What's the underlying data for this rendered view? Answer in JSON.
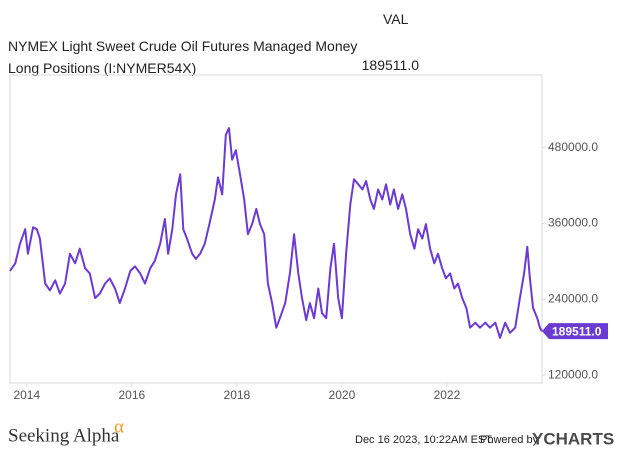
{
  "chart_data": {
    "type": "line",
    "column_header": "VAL",
    "series": [
      {
        "name": "NYMEX Light Sweet Crude Oil Futures Managed Money Long Positions (I:NYMER54X)",
        "color": "#6a3bd3",
        "x": [
          2013.68,
          2013.78,
          2013.87,
          2013.97,
          2014.02,
          2014.12,
          2014.19,
          2014.25,
          2014.35,
          2014.44,
          2014.54,
          2014.63,
          2014.73,
          2014.82,
          2014.92,
          2015.01,
          2015.11,
          2015.2,
          2015.3,
          2015.39,
          2015.49,
          2015.58,
          2015.68,
          2015.77,
          2015.87,
          2015.97,
          2016.06,
          2016.16,
          2016.25,
          2016.35,
          2016.44,
          2016.54,
          2016.63,
          2016.69,
          2016.77,
          2016.84,
          2016.92,
          2016.98,
          2017.05,
          2017.15,
          2017.22,
          2017.3,
          2017.39,
          2017.49,
          2017.58,
          2017.64,
          2017.72,
          2017.79,
          2017.85,
          2017.91,
          2017.98,
          2018.06,
          2018.14,
          2018.21,
          2018.29,
          2018.37,
          2018.44,
          2018.52,
          2018.59,
          2018.67,
          2018.75,
          2018.82,
          2018.92,
          2019.01,
          2019.09,
          2019.17,
          2019.24,
          2019.32,
          2019.39,
          2019.47,
          2019.55,
          2019.62,
          2019.7,
          2019.78,
          2019.85,
          2019.93,
          2020.0,
          2020.08,
          2020.16,
          2020.23,
          2020.31,
          2020.39,
          2020.46,
          2020.54,
          2020.61,
          2020.69,
          2020.77,
          2020.84,
          2020.92,
          2020.99,
          2021.07,
          2021.15,
          2021.22,
          2021.3,
          2021.38,
          2021.45,
          2021.53,
          2021.6,
          2021.68,
          2021.76,
          2021.83,
          2021.91,
          2021.98,
          2022.06,
          2022.14,
          2022.21,
          2022.29,
          2022.37,
          2022.44,
          2022.54,
          2022.63,
          2022.73,
          2022.82,
          2022.92,
          2023.01,
          2023.11,
          2023.2,
          2023.3,
          2023.39,
          2023.47,
          2023.53,
          2023.58,
          2023.64,
          2023.72,
          2023.77,
          2023.81
        ],
        "values": [
          285000,
          297000,
          328000,
          351000,
          312000,
          354000,
          351000,
          336000,
          265000,
          254000,
          270000,
          249000,
          265000,
          312000,
          297000,
          320000,
          289000,
          281000,
          242000,
          249000,
          265000,
          273000,
          257000,
          234000,
          257000,
          285000,
          292000,
          281000,
          265000,
          289000,
          301000,
          328000,
          367000,
          312000,
          351000,
          406000,
          438000,
          351000,
          336000,
          312000,
          304000,
          312000,
          328000,
          364000,
          398000,
          433000,
          406000,
          500000,
          511000,
          461000,
          476000,
          438000,
          398000,
          343000,
          359000,
          383000,
          359000,
          343000,
          265000,
          234000,
          195000,
          210000,
          234000,
          281000,
          343000,
          281000,
          242000,
          207000,
          234000,
          210000,
          257000,
          218000,
          210000,
          289000,
          328000,
          242000,
          210000,
          312000,
          390000,
          430000,
          422000,
          414000,
          427000,
          398000,
          383000,
          414000,
          398000,
          422000,
          390000,
          414000,
          383000,
          406000,
          383000,
          343000,
          320000,
          351000,
          336000,
          359000,
          320000,
          297000,
          312000,
          289000,
          273000,
          281000,
          257000,
          265000,
          242000,
          226000,
          195000,
          203000,
          195000,
          203000,
          195000,
          203000,
          179000,
          203000,
          187000,
          195000,
          242000,
          281000,
          323000,
          273000,
          226000,
          210000,
          195000,
          189511
        ]
      }
    ],
    "latest": {
      "value": 189511,
      "label": "189511.0"
    },
    "xlim": [
      2013.68,
      2023.81
    ],
    "xticks": [
      2014,
      2016,
      2018,
      2020,
      2022
    ],
    "ylim": [
      107500,
      595000
    ],
    "yticks": [
      {
        "value": 120000,
        "label": "120000.0"
      },
      {
        "value": 240000,
        "label": "240000.0"
      },
      {
        "value": 360000,
        "label": "360000.0"
      },
      {
        "value": 480000,
        "label": "480000.0"
      }
    ],
    "grid": false,
    "source_logo": "Seeking Alpha",
    "source_mark": "α",
    "timestamp": "Dec 16 2023, 10:22AM EST.",
    "powered_by": "Powered by",
    "brand": "YCHARTS"
  }
}
